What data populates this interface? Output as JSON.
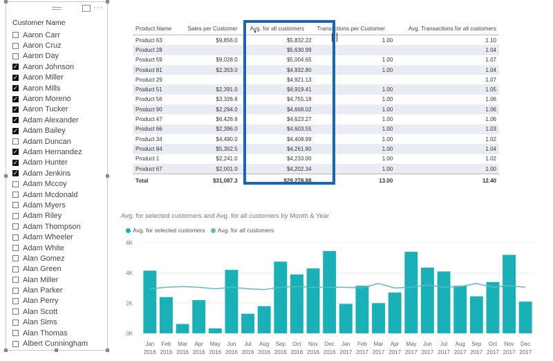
{
  "slicer": {
    "title": "Customer Name",
    "items": [
      {
        "label": "Aaron Carr",
        "checked": false
      },
      {
        "label": "Aaron Cruz",
        "checked": false
      },
      {
        "label": "Aaron Day",
        "checked": false
      },
      {
        "label": "Aaron Johnson",
        "checked": true
      },
      {
        "label": "Aaron Miller",
        "checked": true
      },
      {
        "label": "Aaron Mills",
        "checked": true
      },
      {
        "label": "Aaron Moreno",
        "checked": true
      },
      {
        "label": "Aaron Tucker",
        "checked": true
      },
      {
        "label": "Adam Alexander",
        "checked": true
      },
      {
        "label": "Adam Bailey",
        "checked": true
      },
      {
        "label": "Adam Duncan",
        "checked": false
      },
      {
        "label": "Adam Hernandez",
        "checked": true
      },
      {
        "label": "Adam Hunter",
        "checked": true
      },
      {
        "label": "Adam Jenkins",
        "checked": true
      },
      {
        "label": "Adam Mccoy",
        "checked": false
      },
      {
        "label": "Adam Mcdonald",
        "checked": false
      },
      {
        "label": "Adam Myers",
        "checked": false
      },
      {
        "label": "Adam Riley",
        "checked": false
      },
      {
        "label": "Adam Thompson",
        "checked": false
      },
      {
        "label": "Adam Wheeler",
        "checked": false
      },
      {
        "label": "Adam White",
        "checked": false
      },
      {
        "label": "Alan Gomez",
        "checked": false
      },
      {
        "label": "Alan Green",
        "checked": false
      },
      {
        "label": "Alan Miller",
        "checked": false
      },
      {
        "label": "Alan Parker",
        "checked": false
      },
      {
        "label": "Alan Perry",
        "checked": false
      },
      {
        "label": "Alan Scott",
        "checked": false
      },
      {
        "label": "Alan Sims",
        "checked": false
      },
      {
        "label": "Alan Thomas",
        "checked": false
      },
      {
        "label": "Albert Cunningham",
        "checked": false
      }
    ]
  },
  "table": {
    "headers": [
      "Product Name",
      "Sales per Customer",
      "Avg. for all customers",
      "Transactions per Customer",
      "Avg. Transactions for all customers"
    ],
    "rows": [
      [
        "Product 63",
        "$9,856.0",
        "$5,832.22",
        "1.00",
        "1.10"
      ],
      [
        "Product 28",
        "",
        "$5,630.99",
        "",
        "1.04"
      ],
      [
        "Product 59",
        "$9,028.0",
        "$5,004.65",
        "1.00",
        "1.07"
      ],
      [
        "Product 81",
        "$2,353.0",
        "$4,932.80",
        "1.00",
        "1.04"
      ],
      [
        "Product 29",
        "",
        "$4,921.13",
        "",
        "1.07"
      ],
      [
        "Product 51",
        "$2,391.0",
        "$4,919.41",
        "1.00",
        "1.05"
      ],
      [
        "Product 56",
        "$3,326.6",
        "$4,755.18",
        "1.00",
        "1.06"
      ],
      [
        "Product 90",
        "$2,294.0",
        "$4,668.02",
        "1.00",
        "1.06"
      ],
      [
        "Product 47",
        "$6,426.6",
        "$4,623.27",
        "1.00",
        "1.06"
      ],
      [
        "Product 66",
        "$2,396.0",
        "$4,603.55",
        "1.00",
        "1.03"
      ],
      [
        "Product 34",
        "$4,490.0",
        "$4,408.99",
        "1.00",
        "1.02"
      ],
      [
        "Product 84",
        "$5,352.5",
        "$4,261.80",
        "1.00",
        "1.04"
      ],
      [
        "Product 1",
        "$2,241.0",
        "$4,233.00",
        "1.00",
        "1.02"
      ],
      [
        "Product 67",
        "$2,001.0",
        "$4,202.34",
        "1.00",
        "1.00"
      ]
    ],
    "total": [
      "Total",
      "$31,087.3",
      "$29,278.88",
      "13.00",
      "12.40"
    ]
  },
  "chart_data": {
    "type": "bar",
    "title": "Avg. for selected customers and Avg. for all customers by Month & Year",
    "legend_position": "top-left",
    "categories": [
      "Jan 2016",
      "Feb 2016",
      "Mar 2016",
      "Apr 2016",
      "May 2016",
      "Jun 2016",
      "Jul 2016",
      "Aug 2016",
      "Sep 2016",
      "Oct 2016",
      "Nov 2016",
      "Dec 2016",
      "Jan 2017",
      "Feb 2017",
      "Mar 2017",
      "Apr 2017",
      "May 2017",
      "Jun 2017",
      "Jul 2017",
      "Aug 2017",
      "Sep 2017",
      "Oct 2017",
      "Nov 2017",
      "Dec 2017"
    ],
    "month_labels": [
      "Jan",
      "Feb",
      "Mar",
      "Apr",
      "May",
      "Jun",
      "Jul",
      "Aug",
      "Sep",
      "Oct",
      "Nov",
      "Dec",
      "Jan",
      "Feb",
      "Mar",
      "Apr",
      "May",
      "Jun",
      "Jul",
      "Aug",
      "Sep",
      "Oct",
      "Nov",
      "Dec"
    ],
    "year_labels": [
      "2016",
      "2016",
      "2016",
      "2016",
      "2016",
      "2016",
      "2016",
      "2016",
      "2016",
      "2016",
      "2016",
      "2016",
      "2017",
      "2017",
      "2017",
      "2017",
      "2017",
      "2017",
      "2017",
      "2017",
      "2017",
      "2017",
      "2017",
      "2017"
    ],
    "series": [
      {
        "name": "Avg. for selected customers",
        "kind": "bar",
        "color": "#1ab0b8",
        "values": [
          4150,
          2400,
          620,
          2200,
          330,
          4200,
          1300,
          1800,
          4750,
          3900,
          4300,
          5450,
          1950,
          3150,
          2000,
          2700,
          5400,
          4350,
          4100,
          3150,
          2450,
          3400,
          5200,
          2100
        ]
      },
      {
        "name": "Avg. for all customers",
        "kind": "line",
        "color": "#5fb8bf",
        "values": [
          2950,
          3050,
          3100,
          3050,
          2950,
          3050,
          2950,
          2900,
          3050,
          3100,
          3050,
          3050,
          3050,
          3000,
          3300,
          3000,
          3050,
          3200,
          3050,
          3100,
          3300,
          3050,
          3150,
          3050
        ]
      }
    ],
    "y_ticks": [
      "0K",
      "2K",
      "4K",
      "6K"
    ],
    "ylim": [
      0,
      6000
    ],
    "grid": true
  }
}
